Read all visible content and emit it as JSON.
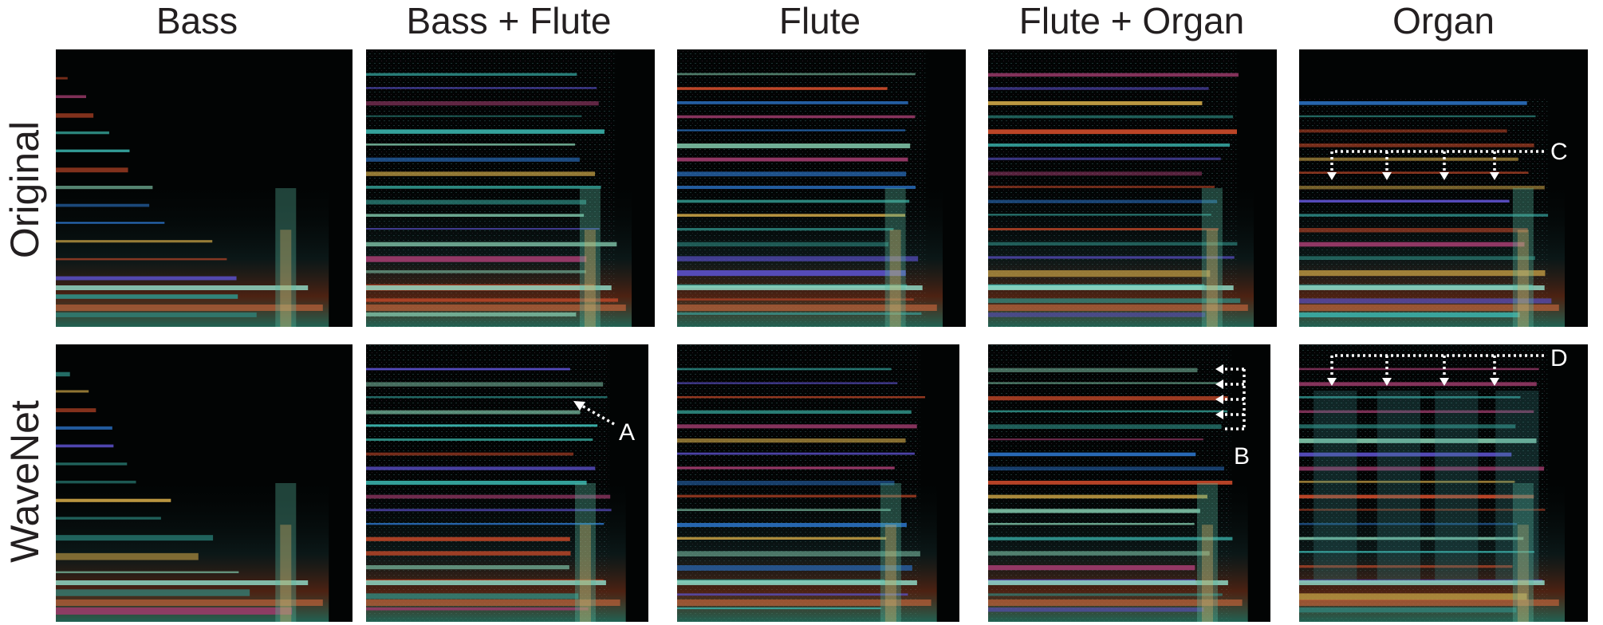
{
  "columns": [
    "Bass",
    "Bass + Flute",
    "Flute",
    "Flute + Organ",
    "Organ"
  ],
  "rows": [
    "Original",
    "WaveNet"
  ],
  "annotations": {
    "a": "A",
    "b": "B",
    "c": "C",
    "d": "D"
  },
  "palette": [
    "#2f8f86",
    "#3bb7b0",
    "#5a4fc6",
    "#c94a2a",
    "#c8a145",
    "#7fc4a8",
    "#9c3b6b",
    "#2a6fc0"
  ]
}
